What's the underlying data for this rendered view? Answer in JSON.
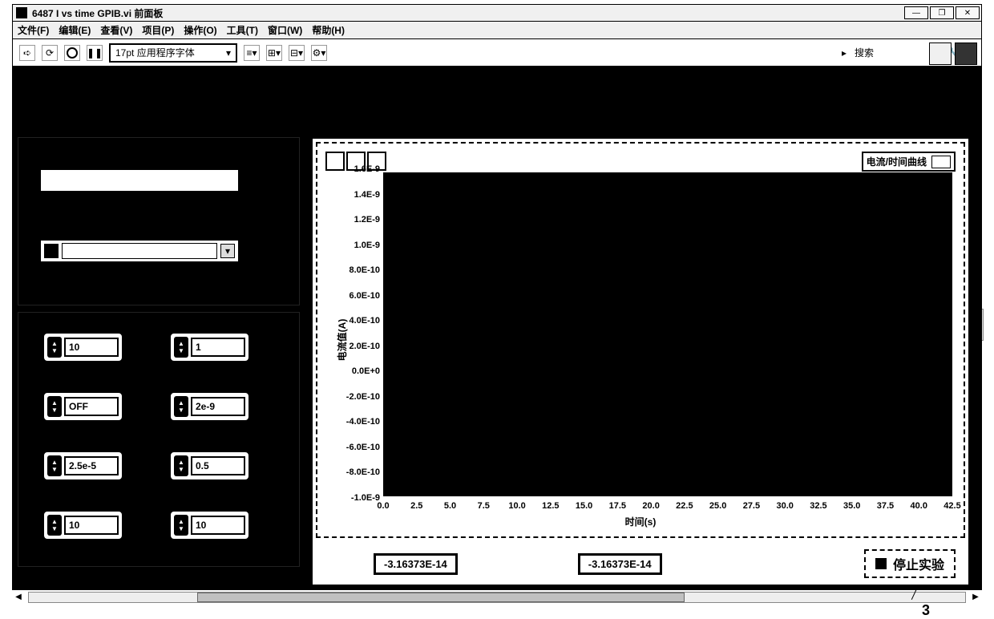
{
  "window": {
    "title": "6487 I vs time GPIB.vi 前面板",
    "controls": {
      "min": "—",
      "max": "❐",
      "close": "✕"
    }
  },
  "menubar": {
    "file": "文件(F)",
    "edit": "编辑(E)",
    "view": "查看(V)",
    "project": "项目(P)",
    "operate": "操作(O)",
    "tools": "工具(T)",
    "window": "窗口(W)",
    "help": "帮助(H)"
  },
  "toolbar": {
    "run": "➪",
    "run_cont": "⟳",
    "abort": "◯",
    "pause": "❚❚",
    "font": "17pt 应用程序字体",
    "caret": "▾",
    "search_prefix": "▸",
    "search_label": "搜索",
    "wrench": "🔧",
    "help": "?"
  },
  "inputs": {
    "r1c1": "10",
    "r1c2": "1",
    "r2c1": "OFF",
    "r2c2": "2e-9",
    "r3c1": "2.5e-5",
    "r3c2": "0.5",
    "r4c1": "10",
    "r4c2": "10"
  },
  "chart": {
    "legend_label": "电流/时间曲线",
    "y_label": "电流值(A)",
    "x_label": "时间(s)",
    "y_ticks": [
      "1.6E-9",
      "1.4E-9",
      "1.2E-9",
      "1.0E-9",
      "8.0E-10",
      "6.0E-10",
      "4.0E-10",
      "2.0E-10",
      "0.0E+0",
      "-2.0E-10",
      "-4.0E-10",
      "-6.0E-10",
      "-8.0E-10",
      "-1.0E-9"
    ],
    "x_ticks": [
      "0.0",
      "2.5",
      "5.0",
      "7.5",
      "10.0",
      "12.5",
      "15.0",
      "17.5",
      "20.0",
      "22.5",
      "25.0",
      "27.5",
      "30.0",
      "32.5",
      "35.0",
      "37.5",
      "40.0",
      "42.5"
    ],
    "background_color": "#000000",
    "text_color": "#000000"
  },
  "readouts": {
    "val1": "-3.16373E-14",
    "val2": "-3.16373E-14"
  },
  "stop_button": "停止实验",
  "annotation": "3"
}
